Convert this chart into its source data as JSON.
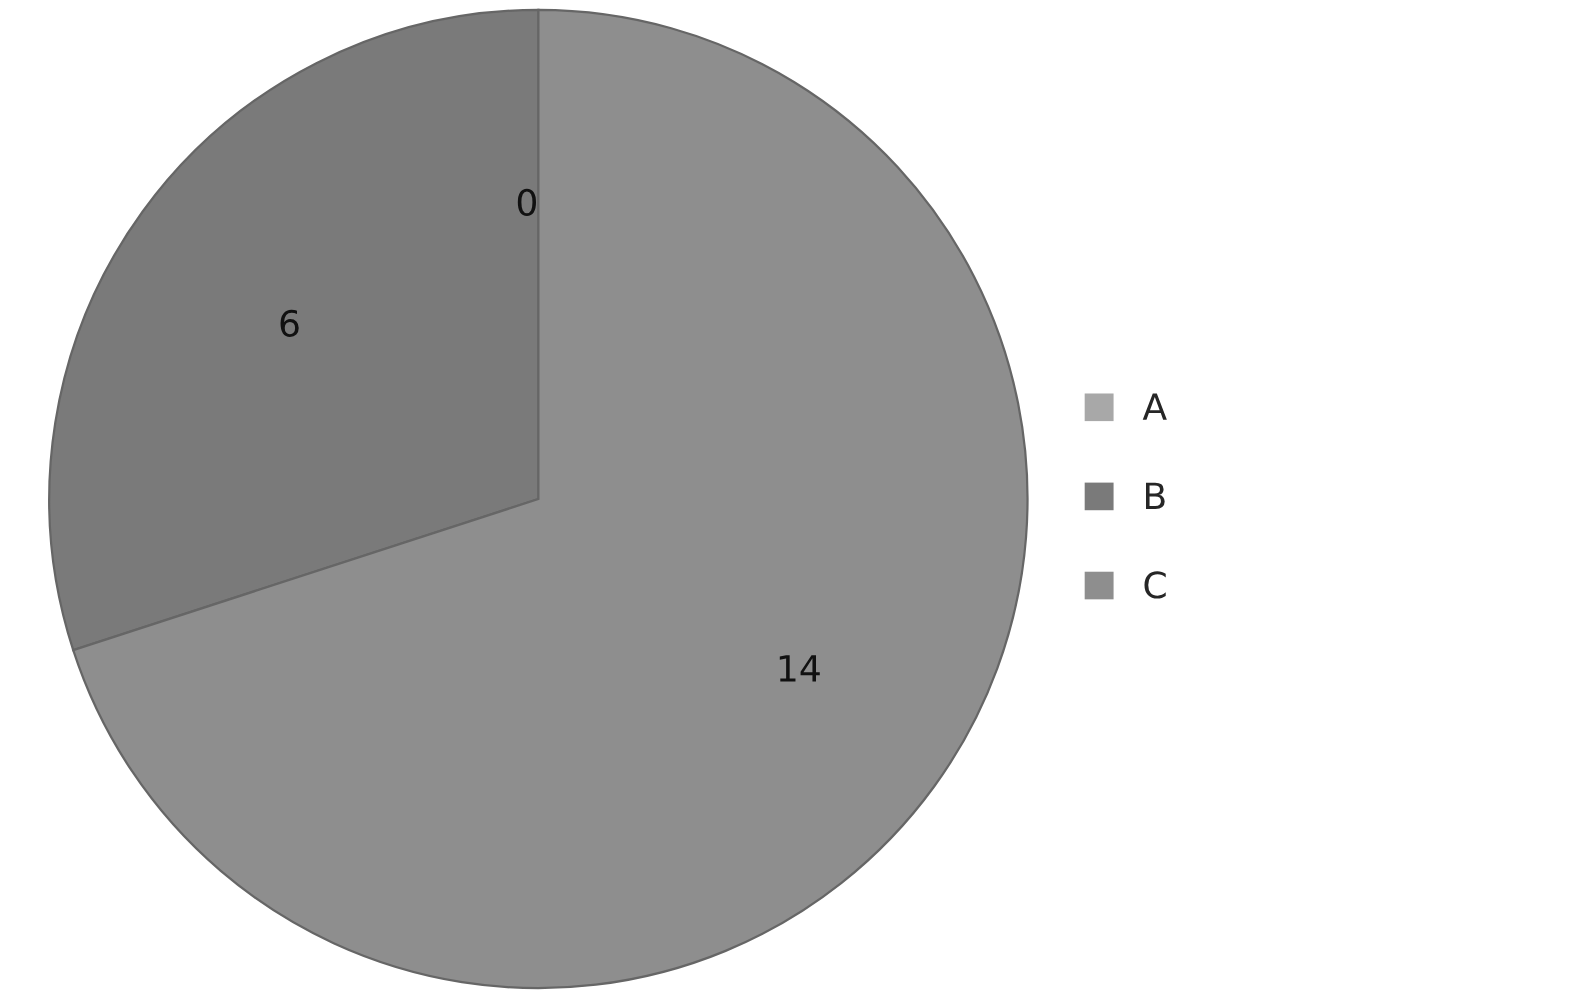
{
  "chart_data": {
    "type": "pie",
    "categories": [
      "A",
      "B",
      "C"
    ],
    "values": [
      0,
      6,
      14
    ],
    "value_labels": [
      "0",
      "6",
      "14"
    ],
    "colors": [
      "#a8a8a8",
      "#7a7a7a",
      "#8e8e8e"
    ],
    "legend": "right"
  }
}
